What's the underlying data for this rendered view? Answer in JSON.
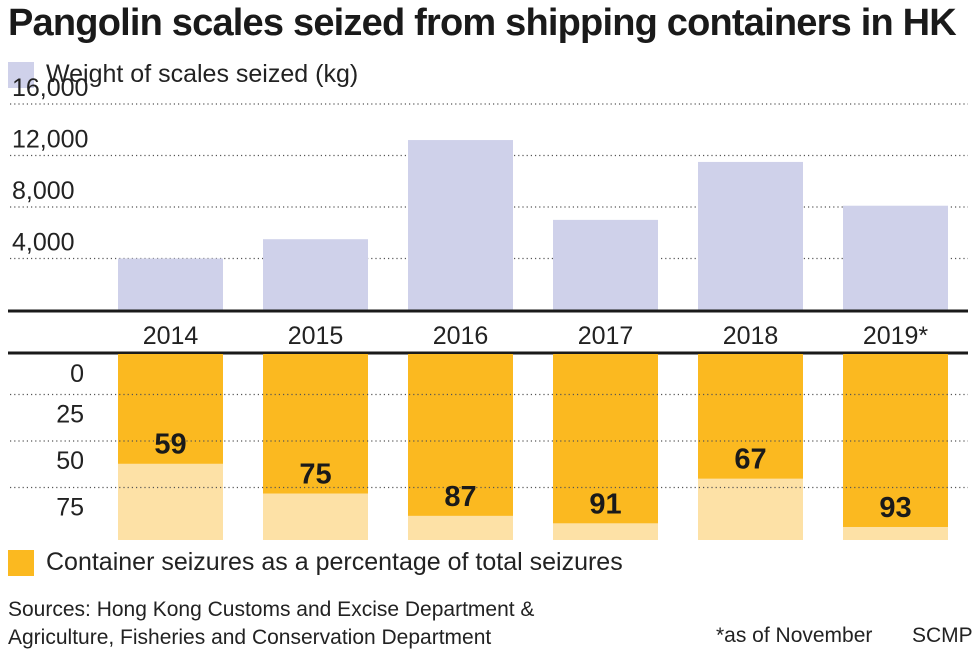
{
  "title": "Pangolin scales seized from shipping containers in HK",
  "chart_data": [
    {
      "type": "bar",
      "legend": "Weight of scales seized (kg)",
      "categories": [
        "2014",
        "2015",
        "2016",
        "2017",
        "2018",
        "2019*"
      ],
      "values": [
        4000,
        5500,
        13200,
        7000,
        11500,
        8100
      ],
      "yticks": [
        "4,000",
        "8,000",
        "12,000",
        "16,000"
      ],
      "ytick_values": [
        4000,
        8000,
        12000,
        16000
      ],
      "ylim": [
        0,
        16000
      ],
      "grid": true,
      "color": "#cfd1ea"
    },
    {
      "type": "bar",
      "legend": "Container seizures as a percentage of total seizures",
      "categories": [
        "2014",
        "2015",
        "2016",
        "2017",
        "2018",
        "2019*"
      ],
      "values": [
        59,
        75,
        87,
        91,
        67,
        93
      ],
      "value_labels": [
        "59",
        "75",
        "87",
        "91",
        "67",
        "93"
      ],
      "yticks": [
        "0",
        "25",
        "50",
        "75"
      ],
      "ytick_values": [
        0,
        25,
        50,
        75
      ],
      "ylim": [
        0,
        100
      ],
      "inverted": true,
      "grid": true,
      "color": "#fbb920",
      "remainder_color": "#fde1a6"
    }
  ],
  "footer": {
    "sources_line1": "Sources: Hong Kong Customs and Excise Department &",
    "sources_line2": "Agriculture, Fisheries and Conservation Department",
    "note": "*as of November",
    "credit": "SCMP"
  }
}
